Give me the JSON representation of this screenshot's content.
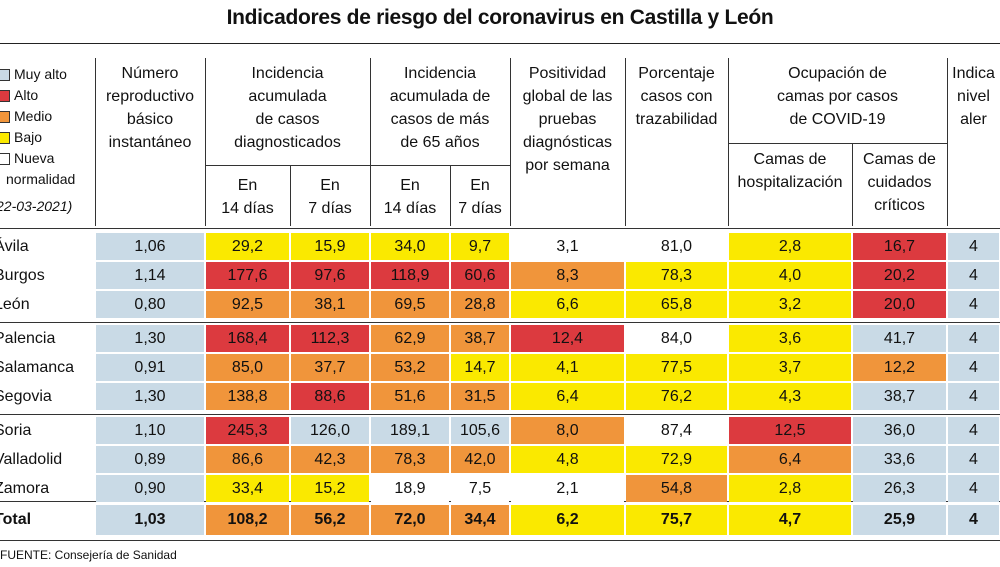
{
  "title": "Indicadores de riesgo del coronavirus en Castilla y León",
  "legend": {
    "items": [
      {
        "label": "Muy alto",
        "color": "#c9dae6"
      },
      {
        "label": "Alto",
        "color": "#dc3a3f"
      },
      {
        "label": "Medio",
        "color": "#f0953b"
      },
      {
        "label": "Bajo",
        "color": "#fae900"
      },
      {
        "label": "Nueva",
        "label2": "normalidad",
        "color": "#ffffff"
      }
    ],
    "date": "22-03-2021)"
  },
  "headers": {
    "col1": [
      "Número",
      "reproductivo",
      "básico",
      "instantáneo"
    ],
    "col2": [
      "Incidencia",
      "acumulada",
      "de casos",
      "diagnosticados"
    ],
    "col2_sub": [
      [
        "En",
        "14 días"
      ],
      [
        "En",
        "7 días"
      ]
    ],
    "col3": [
      "Incidencia",
      "acumulada de",
      "casos de más",
      "de 65 años"
    ],
    "col3_sub": [
      [
        "En",
        "14 días"
      ],
      [
        "En",
        "7 días"
      ]
    ],
    "col4": [
      "Positividad",
      "global de las",
      "pruebas",
      "diagnósticas",
      "por semana"
    ],
    "col5": [
      "Porcentaje",
      "casos con",
      "trazabilidad"
    ],
    "col6": [
      "Ocupación de",
      "camas por casos",
      "de COVID-19"
    ],
    "col6_sub": [
      [
        "Camas de",
        "hospitalización"
      ],
      [
        "Camas de",
        "cuidados",
        "críticos"
      ]
    ],
    "col7": [
      "Indica",
      "nivel",
      "aler"
    ]
  },
  "rows": [
    {
      "label": "Ávila",
      "values": [
        "1,06",
        "29,2",
        "15,9",
        "34,0",
        "9,7",
        "3,1",
        "81,0",
        "2,8",
        "16,7",
        "4"
      ],
      "colors": [
        "#c9dae6",
        "#fae900",
        "#fae900",
        "#fae900",
        "#fae900",
        "#ffffff",
        "#ffffff",
        "#fae900",
        "#dc3a3f",
        "#c9dae6"
      ]
    },
    {
      "label": "Burgos",
      "values": [
        "1,14",
        "177,6",
        "97,6",
        "118,9",
        "60,6",
        "8,3",
        "78,3",
        "4,0",
        "20,2",
        "4"
      ],
      "colors": [
        "#c9dae6",
        "#dc3a3f",
        "#dc3a3f",
        "#dc3a3f",
        "#dc3a3f",
        "#f0953b",
        "#fae900",
        "#fae900",
        "#dc3a3f",
        "#c9dae6"
      ]
    },
    {
      "label": "León",
      "values": [
        "0,80",
        "92,5",
        "38,1",
        "69,5",
        "28,8",
        "6,6",
        "65,8",
        "3,2",
        "20,0",
        "4"
      ],
      "colors": [
        "#c9dae6",
        "#f0953b",
        "#f0953b",
        "#f0953b",
        "#f0953b",
        "#fae900",
        "#fae900",
        "#fae900",
        "#dc3a3f",
        "#c9dae6"
      ]
    },
    {
      "label": "Palencia",
      "values": [
        "1,30",
        "168,4",
        "112,3",
        "62,9",
        "38,7",
        "12,4",
        "84,0",
        "3,6",
        "41,7",
        "4"
      ],
      "colors": [
        "#c9dae6",
        "#dc3a3f",
        "#dc3a3f",
        "#f0953b",
        "#f0953b",
        "#dc3a3f",
        "#ffffff",
        "#fae900",
        "#c9dae6",
        "#c9dae6"
      ]
    },
    {
      "label": "Salamanca",
      "values": [
        "0,91",
        "85,0",
        "37,7",
        "53,2",
        "14,7",
        "4,1",
        "77,5",
        "3,7",
        "12,2",
        "4"
      ],
      "colors": [
        "#c9dae6",
        "#f0953b",
        "#f0953b",
        "#f0953b",
        "#fae900",
        "#fae900",
        "#fae900",
        "#fae900",
        "#f0953b",
        "#c9dae6"
      ]
    },
    {
      "label": "Segovia",
      "values": [
        "1,30",
        "138,8",
        "88,6",
        "51,6",
        "31,5",
        "6,4",
        "76,2",
        "4,3",
        "38,7",
        "4"
      ],
      "colors": [
        "#c9dae6",
        "#f0953b",
        "#dc3a3f",
        "#f0953b",
        "#f0953b",
        "#fae900",
        "#fae900",
        "#fae900",
        "#c9dae6",
        "#c9dae6"
      ]
    },
    {
      "label": "Soria",
      "values": [
        "1,10",
        "245,3",
        "126,0",
        "189,1",
        "105,6",
        "8,0",
        "87,4",
        "12,5",
        "36,0",
        "4"
      ],
      "colors": [
        "#c9dae6",
        "#dc3a3f",
        "#c9dae6",
        "#c9dae6",
        "#c9dae6",
        "#f0953b",
        "#ffffff",
        "#dc3a3f",
        "#c9dae6",
        "#c9dae6"
      ]
    },
    {
      "label": "Valladolid",
      "values": [
        "0,89",
        "86,6",
        "42,3",
        "78,3",
        "42,0",
        "4,8",
        "72,9",
        "6,4",
        "33,6",
        "4"
      ],
      "colors": [
        "#c9dae6",
        "#f0953b",
        "#f0953b",
        "#f0953b",
        "#f0953b",
        "#fae900",
        "#fae900",
        "#f0953b",
        "#c9dae6",
        "#c9dae6"
      ]
    },
    {
      "label": "Zamora",
      "values": [
        "0,90",
        "33,4",
        "15,2",
        "18,9",
        "7,5",
        "2,1",
        "54,8",
        "2,8",
        "26,3",
        "4"
      ],
      "colors": [
        "#c9dae6",
        "#fae900",
        "#fae900",
        "#ffffff",
        "#ffffff",
        "#ffffff",
        "#f0953b",
        "#fae900",
        "#c9dae6",
        "#c9dae6"
      ]
    }
  ],
  "total": {
    "label": "Total",
    "values": [
      "1,03",
      "108,2",
      "56,2",
      "72,0",
      "34,4",
      "6,2",
      "75,7",
      "4,7",
      "25,9",
      "4"
    ],
    "colors": [
      "#c9dae6",
      "#f0953b",
      "#f0953b",
      "#f0953b",
      "#f0953b",
      "#fae900",
      "#fae900",
      "#fae900",
      "#c9dae6",
      "#c9dae6"
    ]
  },
  "source": "FUENTE: Consejería de Sanidad"
}
